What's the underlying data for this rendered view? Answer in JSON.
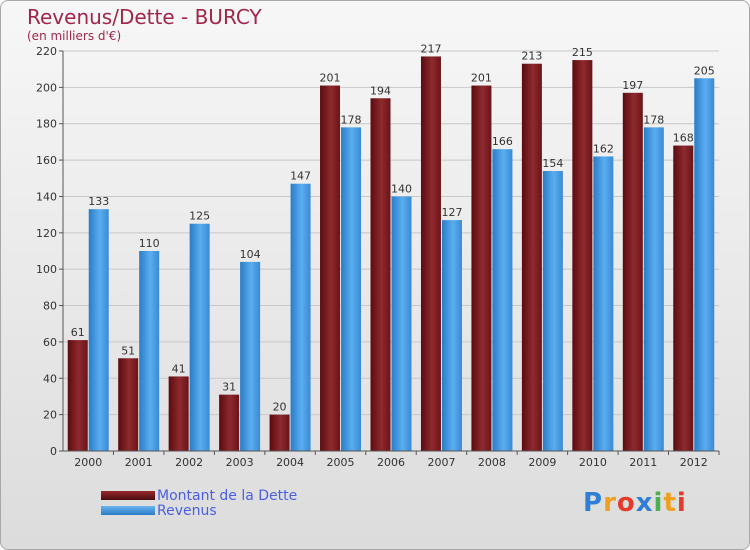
{
  "title": "Revenus/Dette - BURCY",
  "subtitle": "(en milliers d'€)",
  "brand": {
    "letters": [
      "P",
      "r",
      "o",
      "x",
      "i",
      "t",
      "i"
    ],
    "colors": [
      "#2f7fd6",
      "#f0a020",
      "#e33a2c",
      "#2f7fd6",
      "#4caf50",
      "#f0a020",
      "#e33a2c"
    ]
  },
  "chart_data": {
    "type": "bar",
    "categories": [
      "2000",
      "2001",
      "2002",
      "2003",
      "2004",
      "2005",
      "2006",
      "2007",
      "2008",
      "2009",
      "2010",
      "2011",
      "2012"
    ],
    "series": [
      {
        "name": "Montant de la Dette",
        "values": [
          61,
          51,
          41,
          31,
          20,
          201,
          194,
          217,
          201,
          213,
          215,
          197,
          168
        ],
        "color": "#7a1a1e"
      },
      {
        "name": "Revenus",
        "values": [
          133,
          110,
          125,
          104,
          147,
          178,
          140,
          127,
          166,
          154,
          162,
          178,
          205
        ],
        "color": "#3f98e0"
      }
    ],
    "yticks": [
      0,
      20,
      40,
      60,
      80,
      100,
      120,
      140,
      160,
      180,
      200,
      220
    ],
    "ylim": [
      0,
      220
    ],
    "grid": true,
    "legend": "bottom-left"
  }
}
